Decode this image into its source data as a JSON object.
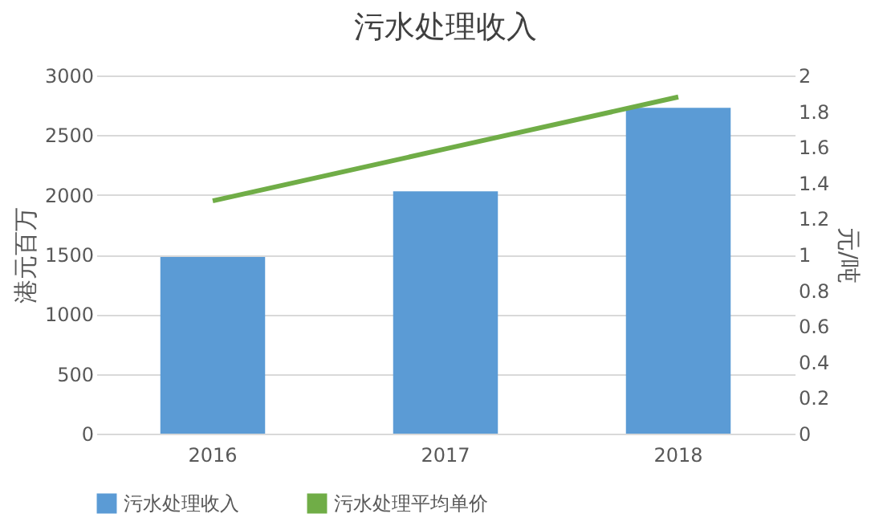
{
  "chart_data": {
    "type": "bar",
    "title": "污水处理收入",
    "categories": [
      "2016",
      "2017",
      "2018"
    ],
    "ylabel": "港元百万",
    "y2label": "元/吨",
    "series": [
      {
        "name": "污水处理收入",
        "color": "#5b9bd5",
        "values": [
          1480,
          2030,
          2730
        ]
      },
      {
        "name": "污水处理平均单价",
        "type": "line",
        "axis": "y2",
        "color": "#70ad47",
        "values": [
          1.3,
          1.59,
          1.88
        ]
      }
    ],
    "ylim": [
      0,
      3000
    ],
    "yticks": [
      0,
      500,
      1000,
      1500,
      2000,
      2500,
      3000
    ],
    "y2lim": [
      0,
      2
    ],
    "y2ticks": [
      0,
      {
        "value": 0.2,
        "label": "0.2"
      },
      {
        "value": 0.4,
        "label": "0.4"
      },
      {
        "value": 0.6,
        "label": "0.6"
      },
      {
        "value": 0.8,
        "label": "0.8"
      },
      1,
      {
        "value": 1.2,
        "label": "1.2"
      },
      {
        "value": 1.4,
        "label": "1.4"
      },
      {
        "value": 1.6,
        "label": "1.6"
      },
      {
        "value": 1.8,
        "label": "1.8"
      },
      2
    ],
    "grid": "y",
    "legend": "bottom"
  }
}
